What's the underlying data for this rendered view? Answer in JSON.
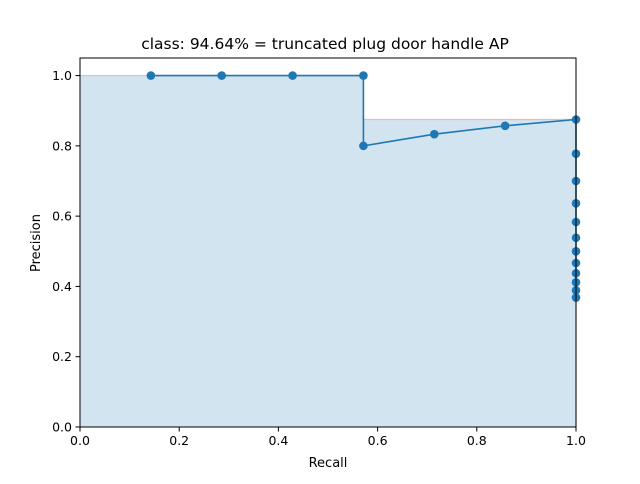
{
  "chart_data": {
    "type": "area",
    "title": "class: 94.64% = truncated plug door handle AP",
    "xlabel": "Recall",
    "ylabel": "Precision",
    "xlim": [
      0.0,
      1.0
    ],
    "ylim": [
      0.0,
      1.05
    ],
    "xticks": [
      "0.0",
      "0.2",
      "0.4",
      "0.6",
      "0.8",
      "1.0"
    ],
    "yticks": [
      "0.0",
      "0.2",
      "0.4",
      "0.6",
      "0.8",
      "1.0"
    ],
    "grid": false,
    "legend": "none",
    "colors": {
      "line": "#1f77b4",
      "fill": "#1f77b4",
      "envelope": "#f4a6a6"
    },
    "series": [
      {
        "points": [
          [
            0.1429,
            1.0
          ],
          [
            0.2857,
            1.0
          ],
          [
            0.4286,
            1.0
          ],
          [
            0.5714,
            1.0
          ],
          [
            0.5714,
            0.8
          ],
          [
            0.7143,
            0.8333
          ],
          [
            0.8571,
            0.8571
          ],
          [
            1.0,
            0.875
          ],
          [
            1.0,
            0.7778
          ],
          [
            1.0,
            0.7
          ],
          [
            1.0,
            0.6364
          ],
          [
            1.0,
            0.5833
          ],
          [
            1.0,
            0.5385
          ],
          [
            1.0,
            0.5
          ],
          [
            1.0,
            0.4667
          ],
          [
            1.0,
            0.4375
          ],
          [
            1.0,
            0.4118
          ],
          [
            1.0,
            0.3889
          ],
          [
            1.0,
            0.3684
          ]
        ]
      }
    ],
    "interpolated_envelope": [
      [
        0.0,
        1.0
      ],
      [
        0.5714,
        1.0
      ],
      [
        0.5714,
        0.875
      ],
      [
        1.0,
        0.875
      ],
      [
        1.0,
        0.0
      ]
    ]
  }
}
